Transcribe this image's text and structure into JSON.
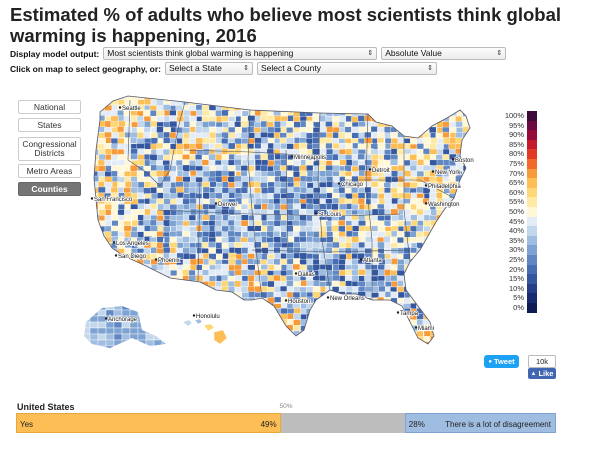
{
  "title": "Estimated % of adults who believe most scientists think global warming is happening, 2016",
  "controls": {
    "display_label": "Display model output:",
    "model_output": "Most scientists think global warming is happening",
    "value_type": "Absolute Value",
    "click_label": "Click on map to select geography, or:",
    "state_select": "Select a State",
    "county_select": "Select a County",
    "arrow_glyph": "⇕"
  },
  "geo_buttons": [
    {
      "label": "National",
      "active": false
    },
    {
      "label": "States",
      "active": false
    },
    {
      "label": "Congressional Districts",
      "active": false
    },
    {
      "label": "Metro Areas",
      "active": false
    },
    {
      "label": "Counties",
      "active": true
    }
  ],
  "cities": [
    {
      "name": "Seattle"
    },
    {
      "name": "San Francisco"
    },
    {
      "name": "Los Angeles"
    },
    {
      "name": "San Diego"
    },
    {
      "name": "Phoenix"
    },
    {
      "name": "Denver"
    },
    {
      "name": "Minneapolis"
    },
    {
      "name": "Chicago"
    },
    {
      "name": "Detroit"
    },
    {
      "name": "St. Louis"
    },
    {
      "name": "Dallas"
    },
    {
      "name": "Houston"
    },
    {
      "name": "New Orleans"
    },
    {
      "name": "Atlanta"
    },
    {
      "name": "Tampa"
    },
    {
      "name": "Miami"
    },
    {
      "name": "Washington"
    },
    {
      "name": "Philadelphia"
    },
    {
      "name": "New York"
    },
    {
      "name": "Boston"
    },
    {
      "name": "Anchorage"
    },
    {
      "name": "Honolulu"
    }
  ],
  "legend": {
    "labels": [
      "100%",
      "95%",
      "90%",
      "85%",
      "80%",
      "75%",
      "70%",
      "65%",
      "60%",
      "55%",
      "50%",
      "45%",
      "40%",
      "35%",
      "30%",
      "25%",
      "20%",
      "15%",
      "10%",
      "5%",
      "0%"
    ],
    "colors": [
      "#3f0a3a",
      "#6a0a40",
      "#950c3a",
      "#c41a2c",
      "#e13a25",
      "#f26a2a",
      "#f79a3a",
      "#fcbe55",
      "#fdd778",
      "#feeaa4",
      "#fff7d6",
      "#e3ecf6",
      "#c3d7ec",
      "#9fbde0",
      "#7ea3d2",
      "#6187c2",
      "#476eb2",
      "#35579f",
      "#243f88",
      "#172c6f",
      "#0d1c53"
    ]
  },
  "social": {
    "tweet_label": "Tweet",
    "like_count": "10k",
    "like_label": "Like"
  },
  "summary": {
    "region": "United States",
    "yes_label": "Yes",
    "yes_value": "49%",
    "yes_pct": 49,
    "midpoint_label": "50%",
    "disagree_value": "28%",
    "disagree_pct": 28,
    "disagree_label": "There is a lot of disagreement",
    "colors": {
      "yes": "#fcbe55",
      "unknown": "#bdbdbd",
      "disagree": "#9fbde0"
    }
  }
}
